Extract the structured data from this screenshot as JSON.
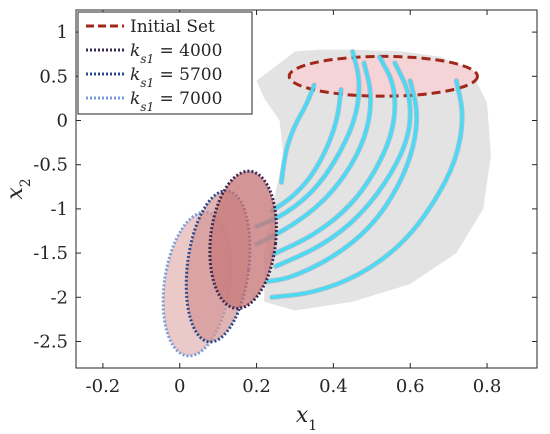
{
  "chart_data": {
    "type": "line",
    "xlabel": "x",
    "xlabel_sub": "1",
    "ylabel": "x",
    "ylabel_sub": "2",
    "xlim": [
      -0.27,
      0.93
    ],
    "ylim": [
      -2.8,
      1.25
    ],
    "xticks": [
      -0.2,
      0,
      0.2,
      0.4,
      0.6,
      0.8
    ],
    "xtick_labels": [
      "-0.2",
      "0",
      "0.2",
      "0.4",
      "0.6",
      "0.8"
    ],
    "yticks": [
      -2.5,
      -2,
      -1.5,
      -1,
      -0.5,
      0,
      0.5,
      1
    ],
    "ytick_labels": [
      "-2.5",
      "-2",
      "-1.5",
      "-1",
      "-0.5",
      "0",
      "0.5",
      "1"
    ],
    "grid": false,
    "legend_position": "top-left",
    "legend": [
      {
        "label": "Initial Set",
        "color": "#a0281a",
        "dash": "dashed"
      },
      {
        "label": "k",
        "sub": "s1",
        "value": " = 4000",
        "color": "#3a2a55",
        "dash": "dotted"
      },
      {
        "label": "k",
        "sub": "s1",
        "value": " = 5700",
        "color": "#2a4a8a",
        "dash": "dotted"
      },
      {
        "label": "k",
        "sub": "s1",
        "value": " = 7000",
        "color": "#7a9fd8",
        "dash": "dotted"
      }
    ],
    "colors": {
      "initial_set_fill": "#f4d4d7",
      "initial_set_edge": "#a0281a",
      "reach_region": "#e3e3e3",
      "trajectory": "#46dcf5",
      "trajectory_shadow": "#6aa8c8"
    },
    "initial_set": {
      "center": [
        0.53,
        0.5
      ],
      "semi_axes": [
        0.245,
        0.225
      ]
    },
    "final_sets": [
      {
        "name": "k_s1 = 4000",
        "center": [
          0.165,
          -1.35
        ],
        "semi_axes": [
          0.085,
          0.78
        ],
        "angle_deg": 6,
        "fill": "#c87a7a",
        "fill_opacity": 0.8,
        "edge": "#3a2a55"
      },
      {
        "name": "k_s1 = 5700",
        "center": [
          0.1,
          -1.65
        ],
        "semi_axes": [
          0.08,
          0.86
        ],
        "angle_deg": 7,
        "fill": "#d49494",
        "fill_opacity": 0.7,
        "edge": "#2a4a8a"
      },
      {
        "name": "k_s1 = 7000",
        "center": [
          0.045,
          -1.85
        ],
        "semi_axes": [
          0.085,
          0.82
        ],
        "angle_deg": 8,
        "fill": "#e3b2b2",
        "fill_opacity": 0.7,
        "edge": "#7a9fd8"
      }
    ],
    "reach_region": {
      "x": [
        0.3,
        0.36,
        0.46,
        0.58,
        0.68,
        0.76,
        0.8,
        0.81,
        0.79,
        0.72,
        0.6,
        0.45,
        0.3,
        0.22,
        0.22,
        0.24,
        0.27,
        0.26,
        0.22,
        0.2
      ],
      "y": [
        0.78,
        0.8,
        0.8,
        0.78,
        0.72,
        0.55,
        0.2,
        -0.4,
        -1.0,
        -1.5,
        -1.85,
        -2.05,
        -2.15,
        -2.05,
        -1.5,
        -1.0,
        -0.4,
        0.0,
        0.25,
        0.45
      ]
    },
    "trajectories": [
      {
        "x": [
          0.35,
          0.33,
          0.3,
          0.28,
          0.27,
          0.265
        ],
        "y": [
          0.4,
          0.18,
          -0.05,
          -0.28,
          -0.5,
          -0.7
        ]
      },
      {
        "x": [
          0.42,
          0.41,
          0.38,
          0.34,
          0.29,
          0.24
        ],
        "y": [
          0.35,
          0.0,
          -0.35,
          -0.65,
          -0.88,
          -1.02
        ]
      },
      {
        "x": [
          0.45,
          0.47,
          0.46,
          0.42,
          0.36,
          0.28,
          0.2
        ],
        "y": [
          0.78,
          0.45,
          0.05,
          -0.35,
          -0.75,
          -1.05,
          -1.2
        ]
      },
      {
        "x": [
          0.48,
          0.5,
          0.49,
          0.45,
          0.38,
          0.29,
          0.2
        ],
        "y": [
          0.65,
          0.3,
          -0.1,
          -0.5,
          -0.9,
          -1.2,
          -1.4
        ]
      },
      {
        "x": [
          0.52,
          0.56,
          0.56,
          0.52,
          0.45,
          0.35,
          0.24
        ],
        "y": [
          0.72,
          0.4,
          -0.05,
          -0.5,
          -0.95,
          -1.3,
          -1.52
        ]
      },
      {
        "x": [
          0.56,
          0.6,
          0.6,
          0.55,
          0.47,
          0.37,
          0.25
        ],
        "y": [
          0.65,
          0.3,
          -0.15,
          -0.62,
          -1.08,
          -1.42,
          -1.65
        ]
      },
      {
        "x": [
          0.6,
          0.62,
          0.61,
          0.57,
          0.5,
          0.4,
          0.29,
          0.23
        ],
        "y": [
          0.45,
          0.1,
          -0.3,
          -0.75,
          -1.2,
          -1.55,
          -1.78,
          -1.82
        ]
      },
      {
        "x": [
          0.72,
          0.74,
          0.72,
          0.66,
          0.58,
          0.47,
          0.35,
          0.24
        ],
        "y": [
          0.45,
          0.05,
          -0.45,
          -0.95,
          -1.4,
          -1.75,
          -1.95,
          -2.0
        ]
      }
    ]
  }
}
